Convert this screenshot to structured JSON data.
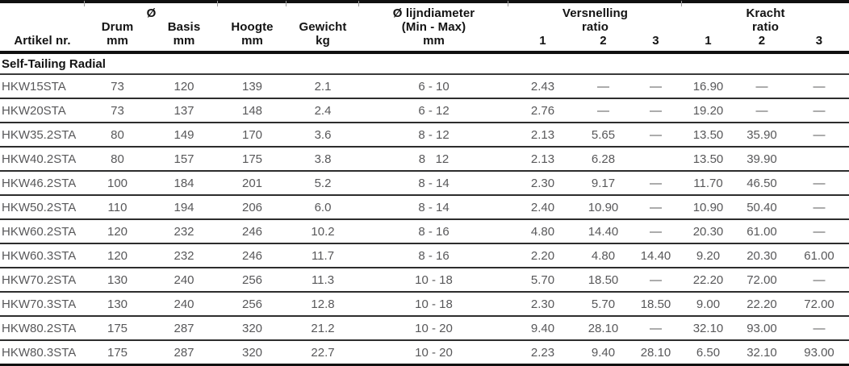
{
  "table": {
    "section_title": "Self-Tailing Radial",
    "header": {
      "col1": "Artikel nr.",
      "diameter_group": "Ø",
      "drum": "Drum",
      "basis": "Basis",
      "hoogte": "Hoogte",
      "gewicht": "Gewicht",
      "mm": "mm",
      "kg": "kg",
      "lijndiameter_title": "Ø lijndiameter",
      "lijndiameter_sub": "(Min - Max)",
      "versnelling_title": "Versnelling",
      "kracht_title": "Kracht",
      "ratio": "ratio",
      "gear1": "1",
      "gear2": "2",
      "gear3": "3"
    },
    "rows": [
      [
        "HKW15STA",
        "73",
        "120",
        "139",
        "2.1",
        "6 - 10",
        "2.43",
        "—",
        "—",
        "16.90",
        "—",
        "—"
      ],
      [
        "HKW20STA",
        "73",
        "137",
        "148",
        "2.4",
        "6 - 12",
        "2.76",
        "—",
        "—",
        "19.20",
        "—",
        "—"
      ],
      [
        "HKW35.2STA",
        "80",
        "149",
        "170",
        "3.6",
        "8 - 12",
        "2.13",
        "5.65",
        "—",
        "13.50",
        "35.90",
        "—"
      ],
      [
        "HKW40.2STA",
        "80",
        "157",
        "175",
        "3.8",
        "8   12",
        "2.13",
        "6.28",
        "",
        "13.50",
        "39.90",
        ""
      ],
      [
        "HKW46.2STA",
        "100",
        "184",
        "201",
        "5.2",
        "8 - 14",
        "2.30",
        "9.17",
        "—",
        "11.70",
        "46.50",
        "—"
      ],
      [
        "HKW50.2STA",
        "110",
        "194",
        "206",
        "6.0",
        "8 - 14",
        "2.40",
        "10.90",
        "—",
        "10.90",
        "50.40",
        "—"
      ],
      [
        "HKW60.2STA",
        "120",
        "232",
        "246",
        "10.2",
        "8 - 16",
        "4.80",
        "14.40",
        "—",
        "20.30",
        "61.00",
        "—"
      ],
      [
        "HKW60.3STA",
        "120",
        "232",
        "246",
        "11.7",
        "8 - 16",
        "2.20",
        "4.80",
        "14.40",
        "9.20",
        "20.30",
        "61.00"
      ],
      [
        "HKW70.2STA",
        "130",
        "240",
        "256",
        "11.3",
        "10 - 18",
        "5.70",
        "18.50",
        "—",
        "22.20",
        "72.00",
        "—"
      ],
      [
        "HKW70.3STA",
        "130",
        "240",
        "256",
        "12.8",
        "10 - 18",
        "2.30",
        "5.70",
        "18.50",
        "9.00",
        "22.20",
        "72.00"
      ],
      [
        "HKW80.2STA",
        "175",
        "287",
        "320",
        "21.2",
        "10 - 20",
        "9.40",
        "28.10",
        "—",
        "32.10",
        "93.00",
        "—"
      ],
      [
        "HKW80.3STA",
        "175",
        "287",
        "320",
        "22.7",
        "10 - 20",
        "2.23",
        "9.40",
        "28.10",
        "6.50",
        "32.10",
        "93.00"
      ]
    ],
    "colors": {
      "header_text": "#131313",
      "body_text": "#58585a",
      "heavy_rule": "#101010",
      "row_rule": "#2d2d2d",
      "tick": "#9c9c9c"
    }
  }
}
